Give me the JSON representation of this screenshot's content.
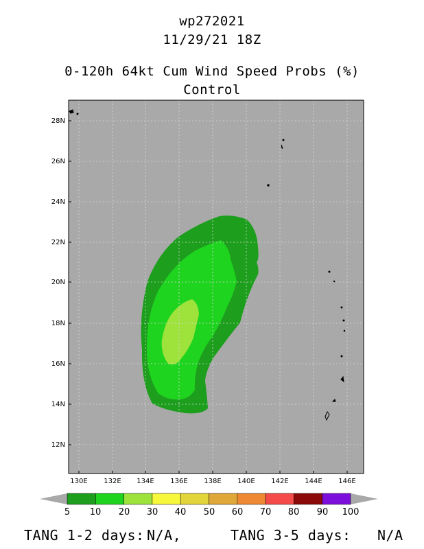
{
  "header": {
    "storm_id": "wp272021",
    "datetime": "11/29/21 18Z",
    "product": "0-120h 64kt Cum Wind Speed Probs (%)",
    "run": "Control"
  },
  "map": {
    "lat_ticks": [
      "28N",
      "26N",
      "24N",
      "22N",
      "20N",
      "18N",
      "16N",
      "14N",
      "12N"
    ],
    "lon_ticks": [
      "130E",
      "132E",
      "134E",
      "136E",
      "138E",
      "140E",
      "142E",
      "144E",
      "146E"
    ],
    "background_color": "#a9a9a9",
    "gridlines": "dotted",
    "probability_contours": [
      {
        "level": "5-10",
        "color": "#1d9e1d"
      },
      {
        "level": "10-20",
        "color": "#1fd41f"
      },
      {
        "level": "20-30",
        "color": "#9ee23c"
      }
    ]
  },
  "colorbar": {
    "labels": [
      "5",
      "10",
      "20",
      "30",
      "40",
      "50",
      "60",
      "70",
      "80",
      "90",
      "100"
    ],
    "colors": [
      "#1d9e1d",
      "#1fd41f",
      "#9ee23c",
      "#f7f73b",
      "#e2d53b",
      "#e0a838",
      "#ee8833",
      "#f54a4a",
      "#8c0909",
      "#7d0fdc"
    ]
  },
  "footer": {
    "tang_12_label": "TANG 1-2 days:",
    "tang_12_value": "N/A,",
    "tang_35_label": "TANG 3-5 days:",
    "tang_35_value": "N/A"
  }
}
